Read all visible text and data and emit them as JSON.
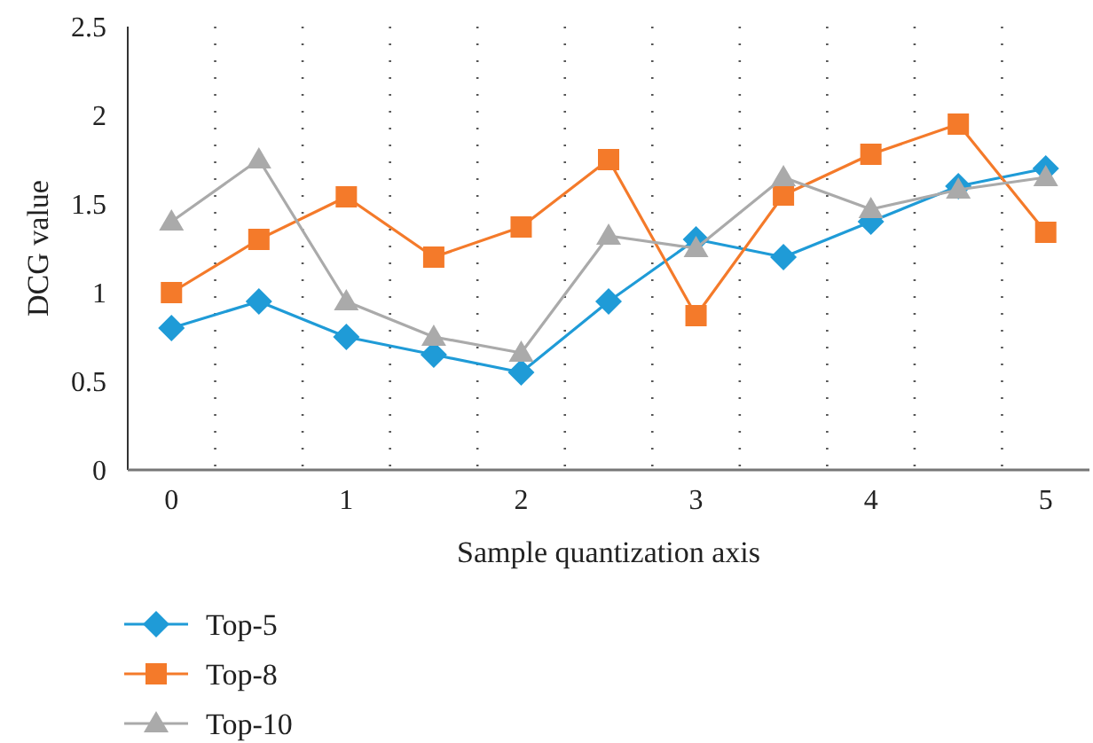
{
  "chart_data": {
    "type": "line",
    "xlabel": "Sample quantization axis",
    "ylabel": "DCG value",
    "x": [
      0,
      0.5,
      1,
      1.5,
      2,
      2.5,
      3,
      3.5,
      4,
      4.5,
      5
    ],
    "xlim": [
      -0.25,
      5.25
    ],
    "xticks": [
      0,
      1,
      2,
      3,
      4,
      5,
      {
        "value": 0.25,
        "label": null
      },
      {
        "value": 0.75,
        "label": null
      },
      {
        "value": 1.25,
        "label": null
      },
      {
        "value": 1.75,
        "label": null
      },
      {
        "value": 2.25,
        "label": null
      },
      {
        "value": 2.75,
        "label": null
      },
      {
        "value": 3.25,
        "label": null
      },
      {
        "value": 3.75,
        "label": null
      },
      {
        "value": 4.25,
        "label": null
      },
      {
        "value": 4.75,
        "label": null
      }
    ],
    "ylim": [
      0,
      2.5
    ],
    "yticks": [
      0,
      0.5,
      1,
      1.5,
      2,
      2.5
    ],
    "grid": "x",
    "legend": "bottom left",
    "series": [
      {
        "name": "Top-5",
        "color": "#1f9bd7",
        "marker": "diamond",
        "values": [
          0.8,
          0.95,
          0.75,
          0.65,
          0.55,
          0.95,
          1.3,
          1.2,
          1.4,
          1.6,
          1.7
        ]
      },
      {
        "name": "Top-8",
        "color": "#f47a2a",
        "marker": "square",
        "values": [
          1.0,
          1.3,
          1.54,
          1.2,
          1.37,
          1.75,
          0.87,
          1.55,
          1.78,
          1.95,
          1.34
        ]
      },
      {
        "name": "Top-10",
        "color": "#aaaaaa",
        "marker": "triangle",
        "values": [
          1.4,
          1.75,
          0.95,
          0.75,
          0.66,
          1.32,
          1.25,
          1.65,
          1.47,
          1.58,
          1.65
        ]
      }
    ]
  }
}
